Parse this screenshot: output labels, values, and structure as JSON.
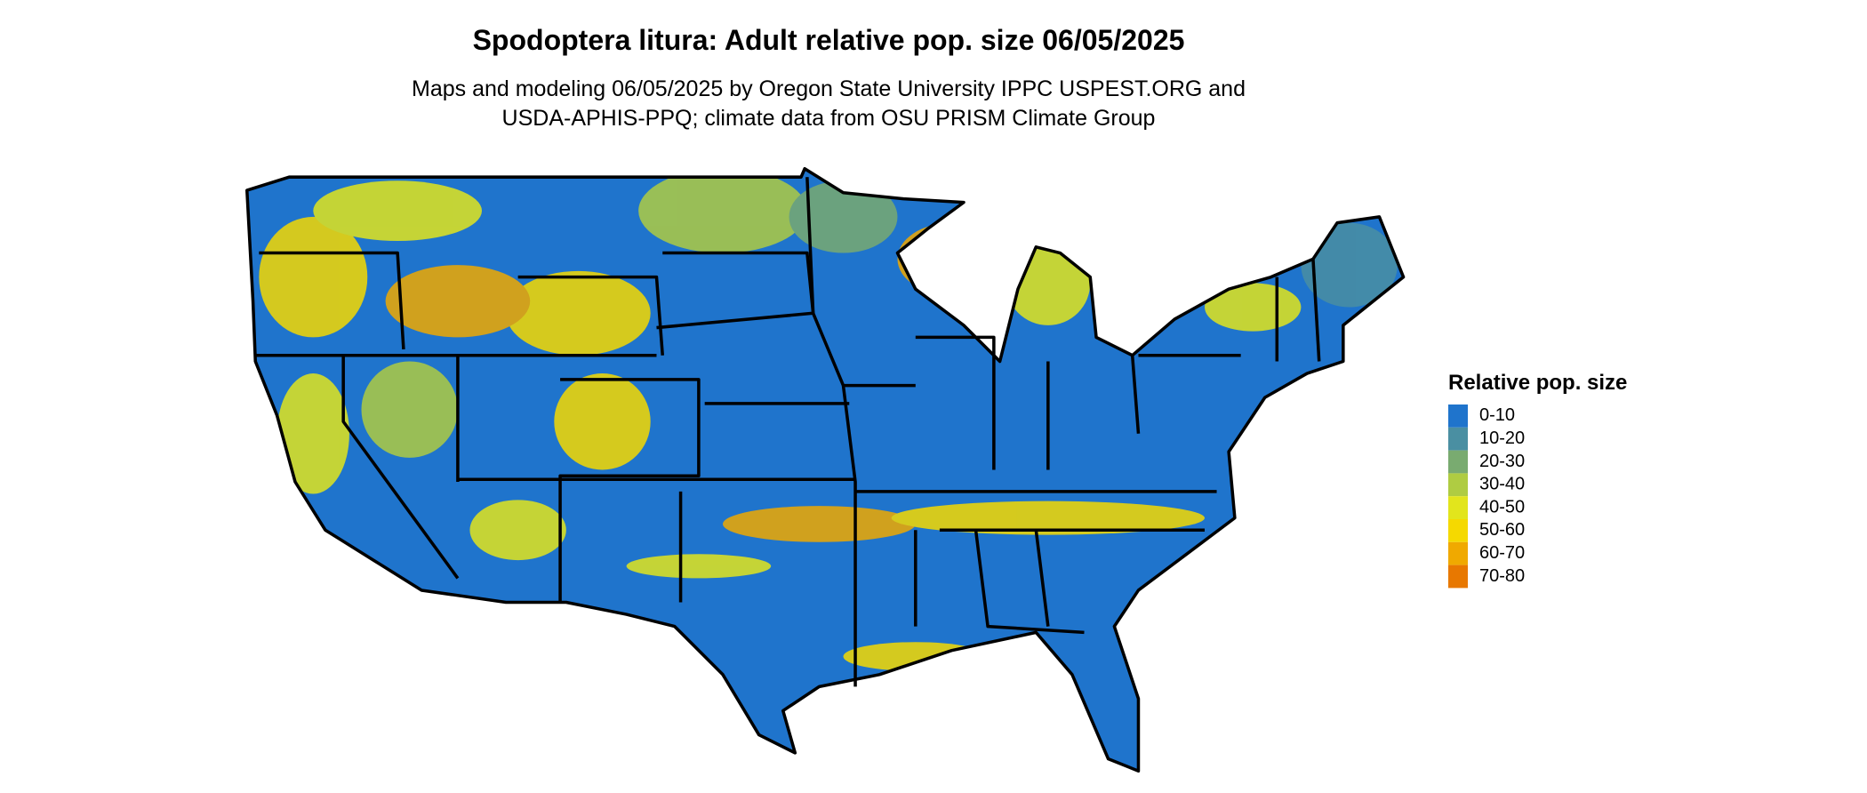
{
  "header": {
    "title": "Spodoptera litura: Adult relative pop. size 06/05/2025",
    "subtitle": [
      "Maps and modeling 06/05/2025 by Oregon State University IPPC USPEST.ORG and",
      "USDA-APHIS-PPQ; climate data from OSU PRISM Climate Group"
    ]
  },
  "legend": {
    "title": "Relative pop. size",
    "items": [
      {
        "label": "0-10",
        "color": "#1f74cc"
      },
      {
        "label": "10-20",
        "color": "#4a8fa2"
      },
      {
        "label": "20-30",
        "color": "#79ab70"
      },
      {
        "label": "30-40",
        "color": "#afcc42"
      },
      {
        "label": "40-50",
        "color": "#e2e51c"
      },
      {
        "label": "50-60",
        "color": "#f5d900"
      },
      {
        "label": "60-70",
        "color": "#f0a900"
      },
      {
        "label": "70-80",
        "color": "#e87800"
      }
    ]
  }
}
